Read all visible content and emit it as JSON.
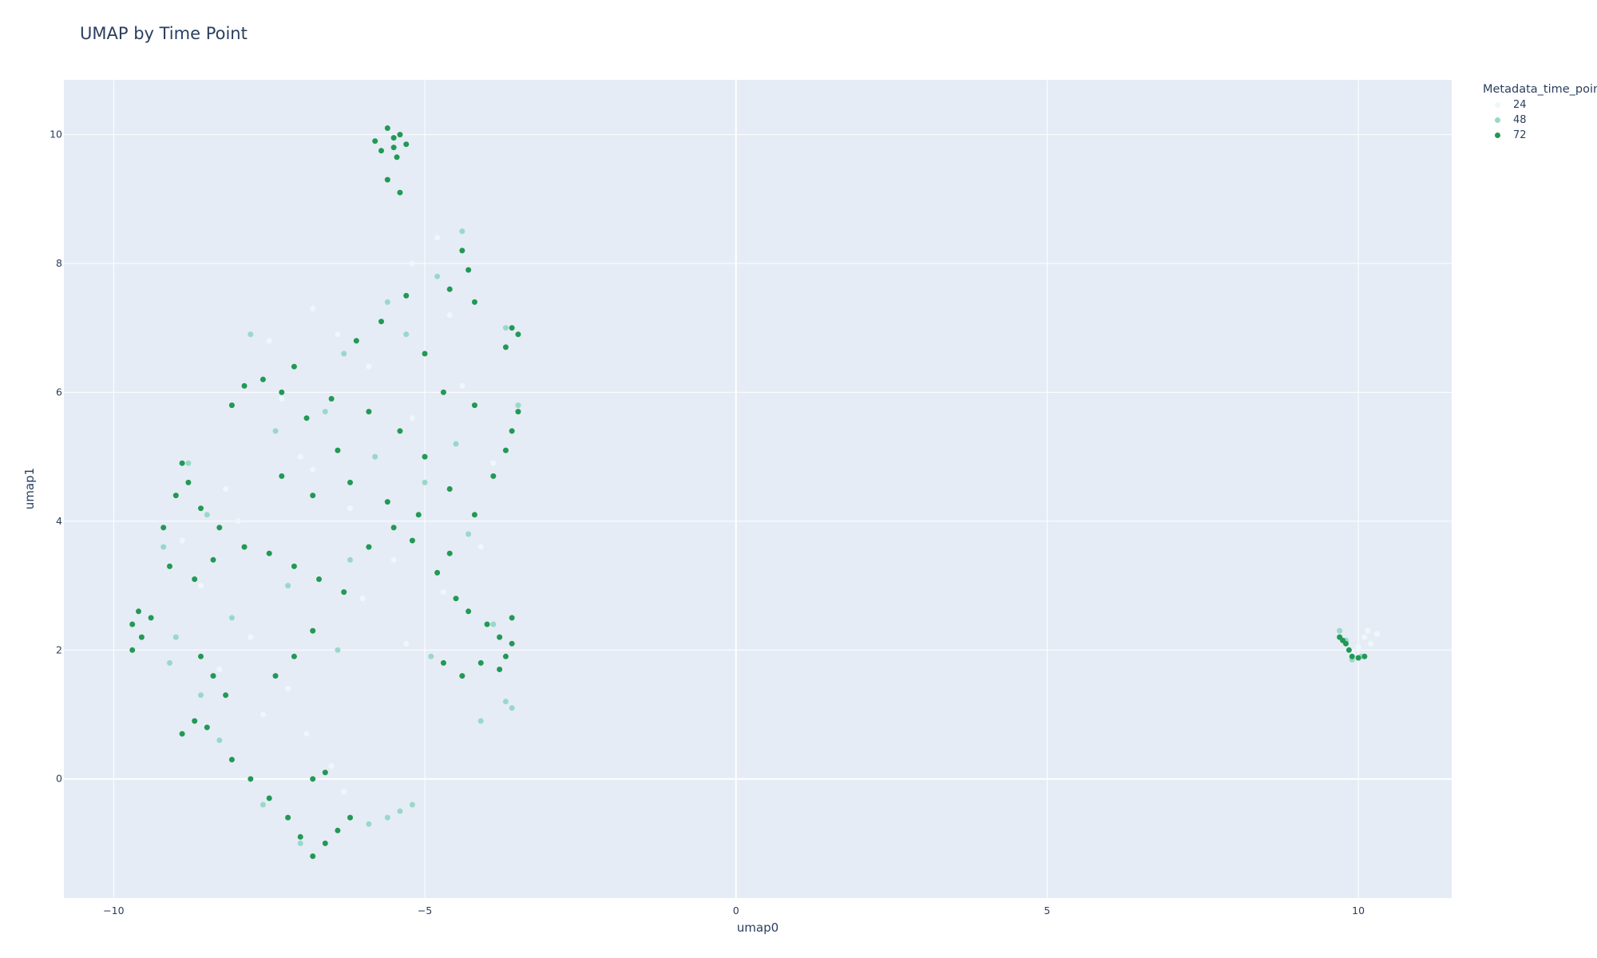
{
  "chart_data": {
    "type": "scatter",
    "title": "UMAP by Time Point",
    "xlabel": "umap0",
    "ylabel": "umap1",
    "xlim": [
      -10.8,
      11.5
    ],
    "ylim": [
      -1.85,
      10.85
    ],
    "x_ticks": [
      -10,
      -5,
      0,
      5,
      10
    ],
    "y_ticks": [
      0,
      2,
      4,
      6,
      8,
      10
    ],
    "x_tick_labels": [
      "−10",
      "−5",
      "0",
      "5",
      "10"
    ],
    "y_tick_labels": [
      "0",
      "2",
      "4",
      "6",
      "8",
      "10"
    ],
    "grid": true,
    "legend": {
      "title": "Metadata_time_point",
      "placement": "top-right-outside"
    },
    "series": [
      {
        "name": "24",
        "color": "#edf8fb",
        "points": [
          [
            -8.2,
            4.5
          ],
          [
            -7.5,
            6.8
          ],
          [
            -6.8,
            7.3
          ],
          [
            -5.2,
            8.0
          ],
          [
            -4.8,
            8.4
          ],
          [
            -4.6,
            7.2
          ],
          [
            -7.0,
            5.0
          ],
          [
            -6.2,
            4.2
          ],
          [
            -5.5,
            3.4
          ],
          [
            -8.6,
            3.0
          ],
          [
            -7.8,
            2.2
          ],
          [
            -7.2,
            1.4
          ],
          [
            -6.9,
            0.7
          ],
          [
            -6.5,
            0.2
          ],
          [
            -6.3,
            -0.2
          ],
          [
            -5.2,
            5.6
          ],
          [
            -4.4,
            6.1
          ],
          [
            -4.1,
            3.6
          ],
          [
            -3.9,
            4.9
          ],
          [
            -6.8,
            4.8
          ],
          [
            -8.9,
            3.7
          ],
          [
            -8.3,
            1.7
          ],
          [
            -7.6,
            1.0
          ],
          [
            -6.0,
            2.8
          ],
          [
            -5.3,
            2.1
          ],
          [
            -4.7,
            2.9
          ],
          [
            -5.9,
            6.4
          ],
          [
            -6.4,
            6.9
          ],
          [
            -7.3,
            5.9
          ],
          [
            -8.0,
            4.0
          ],
          [
            10.1,
            2.2
          ],
          [
            10.2,
            2.1
          ],
          [
            10.3,
            2.25
          ],
          [
            10.0,
            2.05
          ],
          [
            9.9,
            1.95
          ],
          [
            10.15,
            2.3
          ]
        ]
      },
      {
        "name": "48",
        "color": "#99d8c9",
        "points": [
          [
            -8.8,
            4.9
          ],
          [
            -7.4,
            5.4
          ],
          [
            -6.6,
            5.7
          ],
          [
            -5.8,
            5.0
          ],
          [
            -5.0,
            4.6
          ],
          [
            -4.4,
            8.5
          ],
          [
            -4.8,
            7.8
          ],
          [
            -3.7,
            7.0
          ],
          [
            -3.5,
            5.8
          ],
          [
            -4.3,
            3.8
          ],
          [
            -3.9,
            2.4
          ],
          [
            -3.7,
            1.2
          ],
          [
            -3.6,
            1.1
          ],
          [
            -4.1,
            0.9
          ],
          [
            -8.3,
            0.6
          ],
          [
            -8.6,
            1.3
          ],
          [
            -7.6,
            -0.4
          ],
          [
            -7.0,
            -1.0
          ],
          [
            -5.6,
            -0.6
          ],
          [
            -5.2,
            -0.4
          ],
          [
            -5.4,
            -0.5
          ],
          [
            -5.9,
            -0.7
          ],
          [
            -6.2,
            3.4
          ],
          [
            -7.2,
            3.0
          ],
          [
            -8.1,
            2.5
          ],
          [
            -6.4,
            2.0
          ],
          [
            -4.9,
            1.9
          ],
          [
            -5.6,
            7.4
          ],
          [
            -6.3,
            6.6
          ],
          [
            -7.8,
            6.9
          ],
          [
            -9.0,
            2.2
          ],
          [
            -9.2,
            3.6
          ],
          [
            -9.1,
            1.8
          ],
          [
            -4.5,
            5.2
          ],
          [
            -5.3,
            6.9
          ],
          [
            -8.5,
            4.1
          ],
          [
            9.7,
            2.3
          ],
          [
            9.8,
            2.15
          ],
          [
            9.9,
            1.85
          ],
          [
            10.05,
            1.9
          ]
        ]
      },
      {
        "name": "72",
        "color": "#229954",
        "points": [
          [
            -5.6,
            10.1
          ],
          [
            -5.4,
            10.0
          ],
          [
            -5.5,
            9.8
          ],
          [
            -5.3,
            9.85
          ],
          [
            -5.7,
            9.75
          ],
          [
            -5.5,
            9.95
          ],
          [
            -5.45,
            9.65
          ],
          [
            -5.6,
            9.3
          ],
          [
            -5.4,
            9.1
          ],
          [
            -5.8,
            9.9
          ],
          [
            -4.4,
            8.2
          ],
          [
            -4.3,
            7.9
          ],
          [
            -4.6,
            7.6
          ],
          [
            -4.2,
            7.4
          ],
          [
            -3.6,
            7.0
          ],
          [
            -3.5,
            6.9
          ],
          [
            -3.7,
            6.7
          ],
          [
            -3.5,
            5.7
          ],
          [
            -3.6,
            5.4
          ],
          [
            -3.7,
            5.1
          ],
          [
            -7.9,
            6.1
          ],
          [
            -8.1,
            5.8
          ],
          [
            -7.6,
            6.2
          ],
          [
            -7.3,
            6.0
          ],
          [
            -6.9,
            5.6
          ],
          [
            -6.4,
            5.1
          ],
          [
            -5.9,
            5.7
          ],
          [
            -5.4,
            5.4
          ],
          [
            -5.0,
            5.0
          ],
          [
            -4.6,
            4.5
          ],
          [
            -8.9,
            4.9
          ],
          [
            -8.8,
            4.6
          ],
          [
            -9.0,
            4.4
          ],
          [
            -8.6,
            4.2
          ],
          [
            -8.3,
            3.9
          ],
          [
            -7.9,
            3.6
          ],
          [
            -7.5,
            3.5
          ],
          [
            -7.1,
            3.3
          ],
          [
            -6.7,
            3.1
          ],
          [
            -6.3,
            2.9
          ],
          [
            -5.9,
            3.6
          ],
          [
            -5.5,
            3.9
          ],
          [
            -5.2,
            3.7
          ],
          [
            -4.8,
            3.2
          ],
          [
            -4.5,
            2.8
          ],
          [
            -4.3,
            2.6
          ],
          [
            -4.0,
            2.4
          ],
          [
            -3.8,
            2.2
          ],
          [
            -3.6,
            2.5
          ],
          [
            -3.6,
            2.1
          ],
          [
            -3.7,
            1.9
          ],
          [
            -3.8,
            1.7
          ],
          [
            -4.1,
            1.8
          ],
          [
            -4.4,
            1.6
          ],
          [
            -4.7,
            1.8
          ],
          [
            -9.6,
            2.6
          ],
          [
            -9.7,
            2.4
          ],
          [
            -9.55,
            2.2
          ],
          [
            -9.7,
            2.0
          ],
          [
            -9.4,
            2.5
          ],
          [
            -8.6,
            1.9
          ],
          [
            -8.4,
            1.6
          ],
          [
            -8.2,
            1.3
          ],
          [
            -8.7,
            0.9
          ],
          [
            -8.9,
            0.7
          ],
          [
            -8.5,
            0.8
          ],
          [
            -8.1,
            0.3
          ],
          [
            -7.8,
            0.0
          ],
          [
            -7.5,
            -0.3
          ],
          [
            -7.2,
            -0.6
          ],
          [
            -7.0,
            -0.9
          ],
          [
            -6.8,
            -1.2
          ],
          [
            -6.6,
            -1.0
          ],
          [
            -6.4,
            -0.8
          ],
          [
            -6.2,
            -0.6
          ],
          [
            -6.8,
            0.0
          ],
          [
            -6.6,
            0.1
          ],
          [
            -7.4,
            1.6
          ],
          [
            -7.1,
            1.9
          ],
          [
            -6.8,
            2.3
          ],
          [
            -6.1,
            6.8
          ],
          [
            -5.7,
            7.1
          ],
          [
            -5.3,
            7.5
          ],
          [
            -5.0,
            6.6
          ],
          [
            -4.7,
            6.0
          ],
          [
            -4.2,
            5.8
          ],
          [
            -3.9,
            4.7
          ],
          [
            -4.2,
            4.1
          ],
          [
            -8.4,
            3.4
          ],
          [
            -8.7,
            3.1
          ],
          [
            -9.2,
            3.9
          ],
          [
            -9.1,
            3.3
          ],
          [
            -7.3,
            4.7
          ],
          [
            -6.8,
            4.4
          ],
          [
            -6.2,
            4.6
          ],
          [
            -5.6,
            4.3
          ],
          [
            -5.1,
            4.1
          ],
          [
            -4.6,
            3.5
          ],
          [
            -6.5,
            5.9
          ],
          [
            -7.1,
            6.4
          ],
          [
            9.7,
            2.2
          ],
          [
            9.8,
            2.1
          ],
          [
            9.85,
            2.0
          ],
          [
            9.9,
            1.9
          ],
          [
            10.0,
            1.88
          ],
          [
            10.1,
            1.9
          ],
          [
            9.75,
            2.15
          ]
        ]
      }
    ]
  }
}
